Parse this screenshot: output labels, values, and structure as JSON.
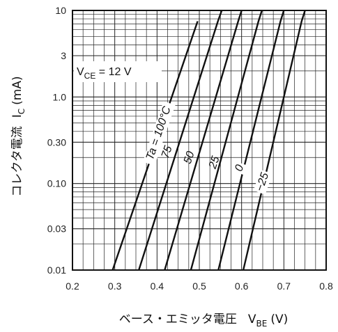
{
  "chart_data": {
    "type": "line",
    "x_axis": {
      "label": "ベース・エミッタ電圧",
      "symbol": "V",
      "subscript": "BE",
      "unit": "(V)",
      "min": 0.2,
      "max": 0.8,
      "ticks": [
        "0.2",
        "0.3",
        "0.4",
        "0.5",
        "0.6",
        "0.7",
        "0.8"
      ]
    },
    "y_axis": {
      "label": "コレクタ電流",
      "symbol": "I",
      "subscript": "C",
      "unit": "(mA)",
      "scale": "log",
      "min": 0.01,
      "max": 10,
      "ticks": [
        "0.01",
        "0.03",
        "0.10",
        "0.30",
        "1.0",
        "3",
        "10"
      ]
    },
    "condition": {
      "prefix": "V",
      "subscript": "CE",
      "text": " = 12 V"
    },
    "grid": true,
    "series": [
      {
        "name": "Ta = 100°C",
        "x": [
          0.295,
          0.496
        ],
        "y": [
          0.01,
          7.5
        ]
      },
      {
        "name": "75",
        "x": [
          0.357,
          0.544,
          0.553
        ],
        "y": [
          0.01,
          7.5,
          10
        ]
      },
      {
        "name": "50",
        "x": [
          0.418,
          0.592,
          0.6
        ],
        "y": [
          0.01,
          7.5,
          10
        ]
      },
      {
        "name": "25",
        "x": [
          0.48,
          0.64,
          0.648
        ],
        "y": [
          0.01,
          7.5,
          10
        ]
      },
      {
        "name": "0",
        "x": [
          0.545,
          0.692,
          0.7
        ],
        "y": [
          0.01,
          7.5,
          10
        ]
      },
      {
        "name": "−25",
        "x": [
          0.604,
          0.742,
          0.75
        ],
        "y": [
          0.01,
          7.5,
          10
        ]
      }
    ]
  }
}
